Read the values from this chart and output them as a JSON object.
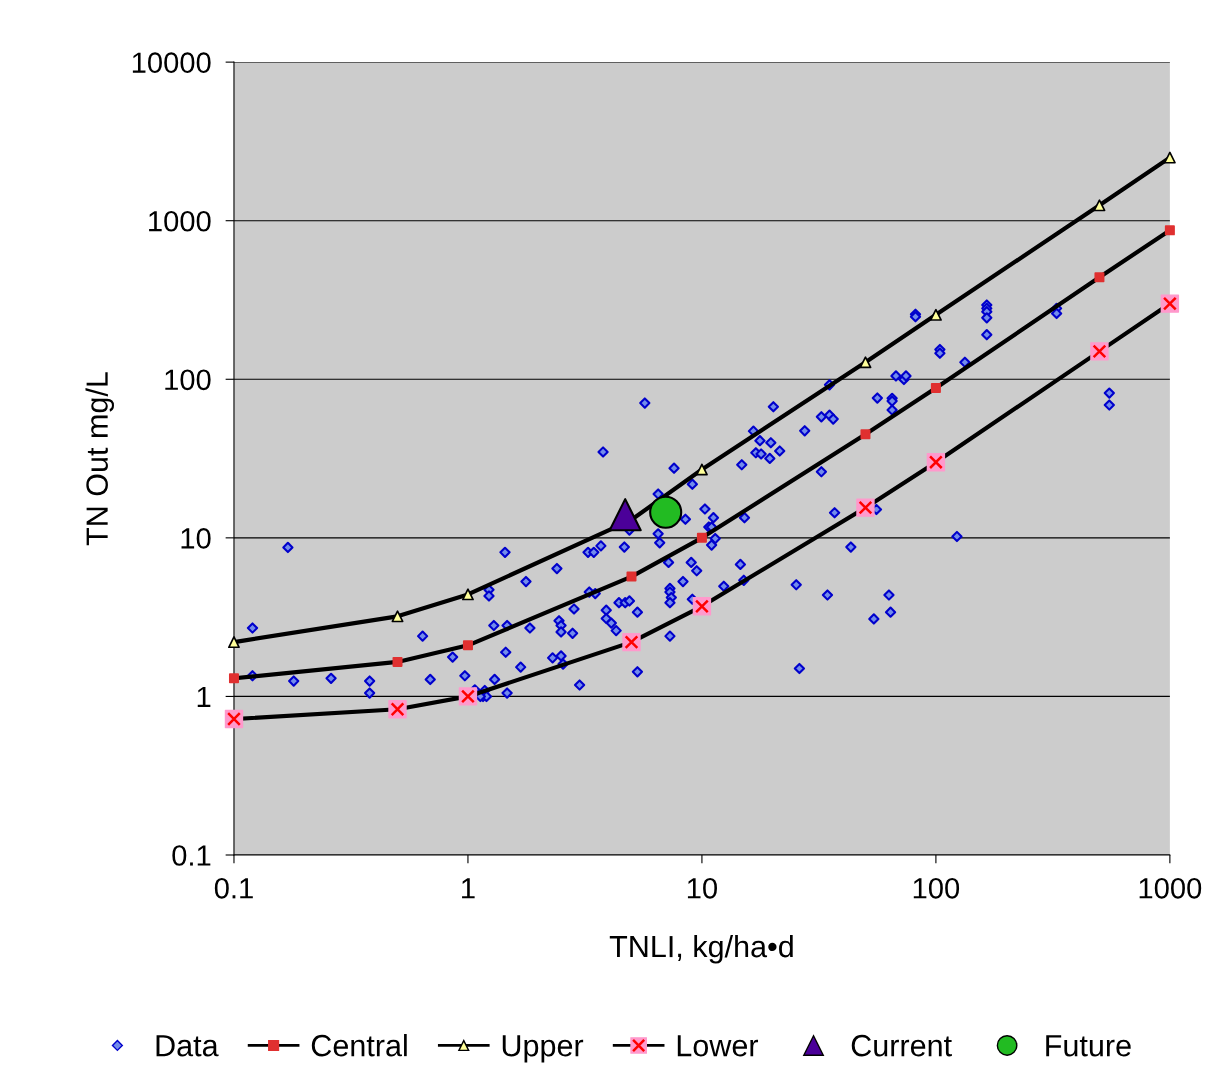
{
  "chart_data": {
    "type": "scatter",
    "xlabel": "TNLI, kg/ha•d",
    "ylabel": "TN Out mg/L",
    "log": "xy",
    "xlim": [
      0.1,
      1000
    ],
    "ylim": [
      0.1,
      10000
    ],
    "xticks": [
      0.1,
      1,
      10,
      100,
      1000
    ],
    "yticks": [
      0.1,
      1,
      10,
      100,
      1000,
      10000
    ],
    "grid": "y",
    "legend": "bottom",
    "series": [
      {
        "name": "Data",
        "marker": "diamond",
        "color": "#0000cc",
        "x": [
          0.17,
          0.12,
          0.12,
          0.18,
          0.26,
          0.38,
          0.38,
          0.64,
          0.69,
          0.86,
          0.97,
          1.07,
          1.16,
          1.23,
          1.23,
          1.29,
          1.44,
          1.47,
          1.45,
          1.47,
          1.68,
          1.77,
          1.84,
          2.3,
          2.4,
          2.45,
          2.5,
          2.5,
          2.5,
          2.55,
          2.84,
          2.8,
          3.0,
          3.26,
          3.45,
          3.3,
          3.5,
          3.78,
          3.7,
          3.9,
          3.9,
          4.1,
          4.3,
          4.42,
          4.7,
          4.9,
          5.3,
          5.3,
          5.7,
          4.9,
          4.66,
          6.5,
          6.5,
          6.6,
          7.6,
          7.2,
          7.3,
          7.3,
          7.4,
          7.3,
          7.3,
          8.3,
          8.5,
          9.1,
          10.3,
          11.2,
          10.7,
          11.0,
          11.4,
          11.0,
          9.0,
          9.5,
          12.4,
          9.1,
          14.6,
          15.1,
          15.2,
          14.8,
          16.6,
          17.7,
          17.0,
          17.9,
          19.5,
          19.7,
          21.5,
          20.2,
          27.5,
          32.4,
          32.4,
          35.1,
          36.4,
          35.1,
          36.9,
          43.3,
          25.3,
          34.4,
          26.1,
          54.3,
          63,
          64,
          55.7,
          123,
          56.2,
          65,
          65,
          65,
          67.5,
          73,
          74.5,
          81.8,
          81.8,
          104,
          104,
          133,
          165,
          165,
          165,
          165,
          165,
          328,
          328,
          551,
          551,
          1.3,
          1.18,
          1.2,
          1.13
        ],
        "values": [
          8.7,
          2.7,
          1.35,
          1.25,
          1.3,
          1.25,
          1.05,
          2.4,
          1.28,
          1.77,
          1.35,
          1.1,
          1.0,
          4.7,
          4.3,
          2.8,
          8.1,
          2.8,
          1.9,
          1.05,
          1.53,
          5.3,
          2.7,
          1.75,
          6.4,
          3.0,
          2.8,
          2.55,
          1.8,
          1.6,
          3.56,
          2.5,
          1.18,
          8.1,
          8.1,
          4.55,
          4.45,
          34.8,
          8.9,
          3.5,
          3.1,
          2.9,
          2.6,
          3.9,
          3.9,
          4.0,
          3.4,
          1.43,
          70.8,
          11.2,
          8.75,
          18.9,
          10.6,
          9.3,
          27.5,
          7.0,
          4.8,
          4.55,
          4.2,
          3.9,
          2.4,
          5.3,
          13.1,
          21.8,
          15.2,
          13.4,
          11.7,
          11.7,
          9.9,
          9.0,
          7.0,
          6.2,
          4.95,
          4.1,
          6.8,
          5.4,
          13.4,
          28.9,
          47.1,
          41,
          34.4,
          33.8,
          31.7,
          39.8,
          35.3,
          67.1,
          47.3,
          26.1,
          58,
          59.4,
          56.1,
          92.3,
          14.4,
          8.75,
          5.06,
          4.36,
          1.5,
          3.08,
          4.36,
          3.4,
          15.1,
          10.2,
          76.1,
          75.8,
          72.9,
          64,
          105,
          99.8,
          105,
          257,
          248,
          154,
          146,
          128,
          294,
          280,
          267,
          244,
          191,
          280,
          260,
          81.8,
          68.8,
          1.28,
          1.09,
          1.0,
          1.0
        ]
      },
      {
        "name": "Central",
        "type": "line",
        "marker": "square",
        "color": "#e03030",
        "x": [
          0.1,
          0.5,
          1,
          5,
          10,
          50,
          100,
          500,
          1000
        ],
        "values": [
          1.3,
          1.65,
          2.1,
          5.7,
          10,
          45,
          88,
          440,
          870
        ]
      },
      {
        "name": "Upper",
        "type": "line",
        "marker": "triangle",
        "color": "#ffff99",
        "x": [
          0.1,
          0.5,
          1,
          5,
          10,
          50,
          100,
          500,
          1000
        ],
        "values": [
          2.2,
          3.2,
          4.4,
          13,
          27,
          128,
          255,
          1250,
          2500
        ]
      },
      {
        "name": "Lower",
        "type": "line",
        "marker": "square",
        "color": "#ff99cc",
        "x": [
          0.1,
          0.5,
          1,
          5,
          10,
          50,
          100,
          500,
          1000
        ],
        "values": [
          0.72,
          0.83,
          1.0,
          2.2,
          3.7,
          15.5,
          30,
          150,
          300
        ]
      },
      {
        "name": "Current",
        "marker": "triangle",
        "color": "#4b0099",
        "x": [
          4.7
        ],
        "values": [
          14
        ]
      },
      {
        "name": "Future",
        "marker": "circle",
        "color": "#22bb22",
        "x": [
          7
        ],
        "values": [
          14.5
        ]
      }
    ]
  }
}
